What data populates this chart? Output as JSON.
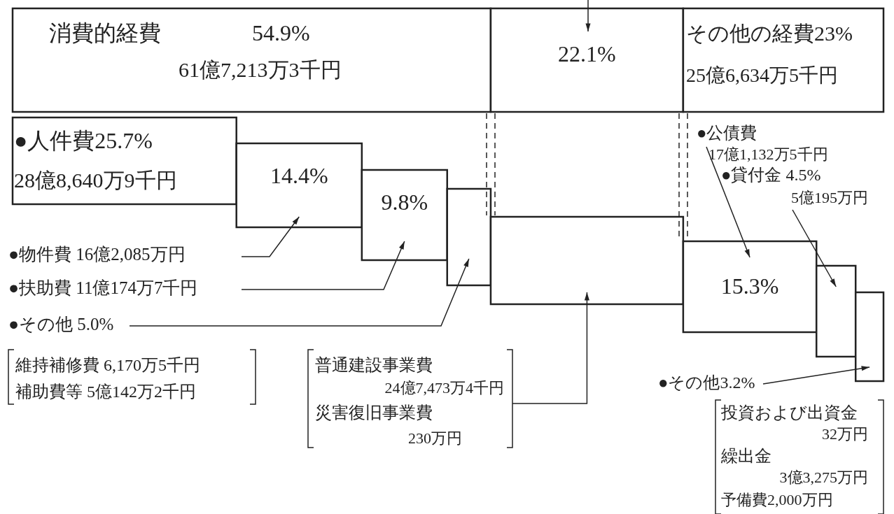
{
  "chart_data": [
    {
      "type": "bar",
      "orientation": "horizontal",
      "stacked": true,
      "categories": [
        null
      ],
      "xlim": [
        0,
        100
      ],
      "series": [
        {
          "name": "消費的経費",
          "color": "#ffffff",
          "values": [
            54.9
          ],
          "value_labels": [
            "54.9%"
          ]
        },
        {
          "color": "#ffffff",
          "values": [
            22.1
          ],
          "value_labels": [
            "22.1%"
          ]
        },
        {
          "name": "その他の経費",
          "color": "#ffffff",
          "values": [
            23
          ],
          "value_labels": [
            "23%"
          ]
        }
      ],
      "annotations": [
        "61億7,213万3千円",
        "25億6,634万5千円"
      ]
    },
    {
      "type": "bar",
      "orientation": "horizontal",
      "stacked": true,
      "categories": [
        null
      ],
      "xlim": [
        0,
        100
      ],
      "series": [
        {
          "name": "●人件費",
          "color": "#ffffff",
          "values": [
            25.7
          ],
          "value_labels": [
            "25.7%"
          ]
        },
        {
          "color": "#ffffff",
          "values": [
            14.4
          ],
          "value_labels": [
            "14.4%"
          ]
        },
        {
          "color": "#ffffff",
          "values": [
            9.8
          ],
          "value_labels": [
            "9.8%"
          ]
        },
        {
          "color": "#ffffff",
          "values": [
            5.0
          ]
        },
        {
          "color": "#ffffff",
          "values": [
            22.1
          ]
        },
        {
          "color": "#ffffff",
          "values": [
            15.3
          ],
          "value_labels": [
            "15.3%"
          ]
        },
        {
          "color": "#ffffff",
          "values": [
            4.5
          ]
        },
        {
          "color": "#ffffff",
          "values": [
            3.2
          ]
        }
      ],
      "annotations": [
        "28億8,640万9千円",
        "●物件費 16億2,085万円",
        "●扶助費 11億174万7千円",
        "●その他 5.0%",
        "維持補修費 6,170万5千円",
        "補助費等 5億142万2千円",
        "普通建設事業費",
        "24億7,473万4千円",
        "災害復旧事業費",
        "230万円",
        "●公債費",
        "17億1,132万5千円",
        "●貸付金 4.5%",
        "5億195万円",
        "●その他3.2%",
        "投資および出資金",
        "32万円",
        "繰出金",
        "3億3,275万円",
        "予備費2,000万円"
      ]
    }
  ]
}
